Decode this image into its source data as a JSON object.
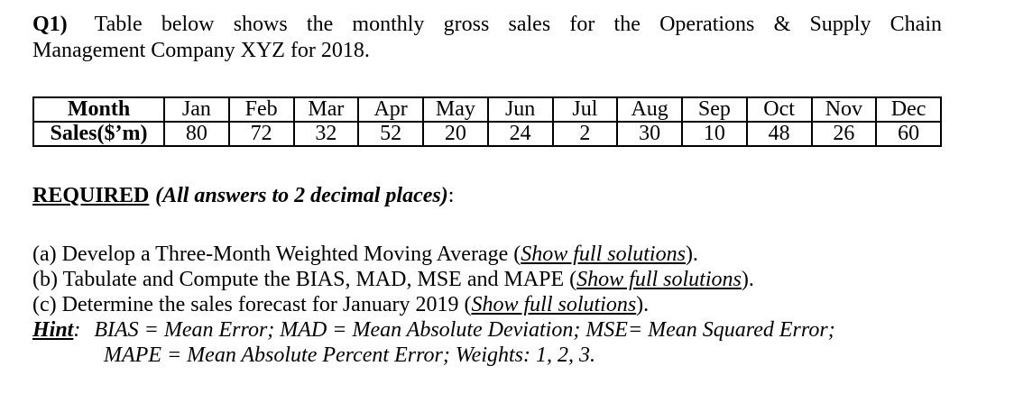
{
  "question": {
    "number_label": "Q1)",
    "intro_line1": "Table below shows the monthly gross sales for the Operations & Supply Chain",
    "intro_line2": "Management Company XYZ for 2018."
  },
  "sales_table": {
    "month_header": "Month",
    "sales_header": "Sales($’m)",
    "months": [
      "Jan",
      "Feb",
      "Mar",
      "Apr",
      "May",
      "Jun",
      "Jul",
      "Aug",
      "Sep",
      "Oct",
      "Nov",
      "Dec"
    ],
    "sales": [
      "80",
      "72",
      "32",
      "52",
      "20",
      "24",
      "2",
      "30",
      "10",
      "48",
      "26",
      "60"
    ]
  },
  "required": {
    "heading": "REQUIRED",
    "note": "(All answers to 2 decimal places)",
    "colon": ":"
  },
  "tasks": [
    {
      "prefix": "(a) Develop a Three-Month Weighted Moving Average (",
      "emph": "Show full solutions",
      "suffix": ")."
    },
    {
      "prefix": "(b) Tabulate and Compute the BIAS, MAD, MSE and MAPE (",
      "emph": "Show full solutions",
      "suffix": ")."
    },
    {
      "prefix": "(c) Determine the sales forecast for January 2019 (",
      "emph": "Show full solutions",
      "suffix": ")."
    }
  ],
  "hint": {
    "label": "Hint",
    "colon": ":",
    "line1": "BIAS = Mean Error; MAD = Mean Absolute Deviation; MSE= Mean Squared Error;",
    "line2": "MAPE = Mean Absolute Percent Error; Weights: 1, 2, 3."
  }
}
